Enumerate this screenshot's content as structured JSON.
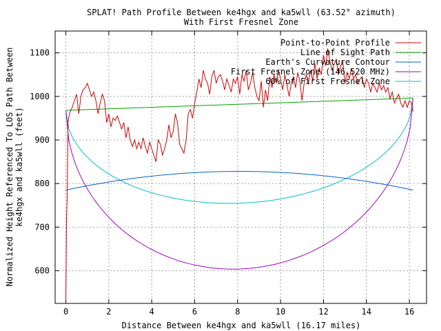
{
  "chart_data": {
    "type": "line",
    "title": "SPLAT! Path Profile Between ke4hgx and ka5wll (63.52° azimuth)",
    "subtitle": "With First Fresnel Zone",
    "xlabel": "Distance Between ke4hgx and ka5wll (16.17 miles)",
    "ylabel_line1": "Normalized Height Referenced To LOS Path Between",
    "ylabel_line2": "ke4hgx and ka5wll (feet)",
    "xlim": [
      -0.5,
      16.8
    ],
    "ylim": [
      525,
      1150
    ],
    "xticks": [
      0,
      2,
      4,
      6,
      8,
      10,
      12,
      14,
      16
    ],
    "yticks": [
      600,
      700,
      800,
      900,
      1000,
      1100
    ],
    "grid": true,
    "legend_position": "top-right",
    "series": [
      {
        "name": "Point-to-Point Profile",
        "color": "#cc0000",
        "x": [
          0.0,
          0.03,
          0.06,
          0.1,
          0.15,
          0.2,
          0.3,
          0.4,
          0.5,
          0.6,
          0.7,
          0.8,
          0.9,
          1.0,
          1.1,
          1.2,
          1.3,
          1.4,
          1.5,
          1.6,
          1.7,
          1.8,
          1.9,
          2.0,
          2.1,
          2.2,
          2.3,
          2.4,
          2.5,
          2.6,
          2.7,
          2.8,
          2.9,
          3.0,
          3.1,
          3.2,
          3.3,
          3.4,
          3.5,
          3.6,
          3.7,
          3.8,
          3.9,
          4.0,
          4.1,
          4.2,
          4.3,
          4.4,
          4.5,
          4.6,
          4.7,
          4.8,
          4.9,
          5.0,
          5.1,
          5.2,
          5.3,
          5.4,
          5.5,
          5.6,
          5.7,
          5.8,
          5.9,
          6.0,
          6.1,
          6.2,
          6.3,
          6.4,
          6.5,
          6.6,
          6.7,
          6.8,
          6.9,
          7.0,
          7.1,
          7.2,
          7.3,
          7.4,
          7.5,
          7.6,
          7.7,
          7.8,
          7.9,
          8.0,
          8.1,
          8.2,
          8.3,
          8.4,
          8.5,
          8.6,
          8.7,
          8.8,
          8.9,
          9.0,
          9.1,
          9.2,
          9.3,
          9.4,
          9.5,
          9.6,
          9.7,
          9.8,
          9.9,
          10.0,
          10.1,
          10.2,
          10.3,
          10.4,
          10.5,
          10.6,
          10.7,
          10.8,
          10.9,
          11.0,
          11.1,
          11.2,
          11.3,
          11.4,
          11.5,
          11.6,
          11.7,
          11.8,
          11.9,
          12.0,
          12.1,
          12.2,
          12.3,
          12.4,
          12.5,
          12.6,
          12.7,
          12.8,
          12.9,
          13.0,
          13.1,
          13.2,
          13.3,
          13.4,
          13.5,
          13.6,
          13.7,
          13.8,
          13.9,
          14.0,
          14.1,
          14.2,
          14.3,
          14.4,
          14.5,
          14.6,
          14.7,
          14.8,
          14.9,
          15.0,
          15.1,
          15.2,
          15.3,
          15.4,
          15.5,
          15.6,
          15.7,
          15.8,
          15.9,
          16.0,
          16.1,
          16.17
        ],
        "y": [
          530,
          720,
          760,
          940,
          955,
          965,
          975,
          990,
          1005,
          960,
          1000,
          1015,
          1020,
          1030,
          1015,
          1000,
          1010,
          990,
          960,
          985,
          1005,
          990,
          940,
          960,
          930,
          950,
          945,
          955,
          940,
          925,
          940,
          905,
          930,
          900,
          885,
          900,
          880,
          895,
          880,
          905,
          885,
          870,
          895,
          880,
          865,
          850,
          900,
          890,
          865,
          880,
          900,
          935,
          905,
          920,
          960,
          940,
          890,
          880,
          870,
          900,
          960,
          970,
          950,
          985,
          1010,
          1040,
          1020,
          1060,
          1040,
          1030,
          1005,
          1045,
          1060,
          1030,
          1045,
          1050,
          1035,
          1015,
          1040,
          1025,
          1010,
          1040,
          1030,
          1045,
          1005,
          1050,
          1035,
          1060,
          1015,
          1030,
          1055,
          1020,
          1000,
          990,
          1035,
          975,
          1015,
          990,
          1045,
          1020,
          1050,
          1030,
          1060,
          1040,
          1015,
          1050,
          1025,
          1000,
          1030,
          1045,
          1020,
          1055,
          1035,
          990,
          1030,
          1050,
          1030,
          1060,
          1035,
          1075,
          1040,
          1065,
          1050,
          1095,
          1070,
          1110,
          1080,
          1060,
          1075,
          1085,
          1050,
          1070,
          1080,
          1030,
          1055,
          1040,
          1065,
          1040,
          1050,
          1030,
          1040,
          1045,
          1020,
          1040,
          1030,
          1010,
          1030,
          1020,
          1010,
          1030,
          1015,
          1025,
          1010,
          1020,
          995,
          1010,
          985,
          995,
          1005,
          985,
          975,
          990,
          975,
          990,
          985,
          965
        ]
      },
      {
        "name": "Line of Sight Path",
        "color": "#00a000",
        "x": [
          0,
          16.17
        ],
        "y": [
          968,
          996
        ]
      },
      {
        "name": "Earth's Curvature Contour",
        "color": "#0060c0",
        "curve": "arc",
        "x_start": 0,
        "x_end": 16.17,
        "y_ends": [
          785,
          785
        ],
        "y_peak": 828
      },
      {
        "name": "First Fresnel Zone (146.520 MHz)",
        "color": "#a000c0",
        "curve": "ellipse",
        "x_start": 0,
        "x_end": 16.17,
        "y_ends": [
          968,
          996
        ],
        "y_min": 604
      },
      {
        "name": "60% of First Fresnel Zone",
        "color": "#00c0c0",
        "curve": "ellipse",
        "x_start": 0,
        "x_end": 16.17,
        "y_ends": [
          968,
          996
        ],
        "y_min": 755
      }
    ]
  }
}
